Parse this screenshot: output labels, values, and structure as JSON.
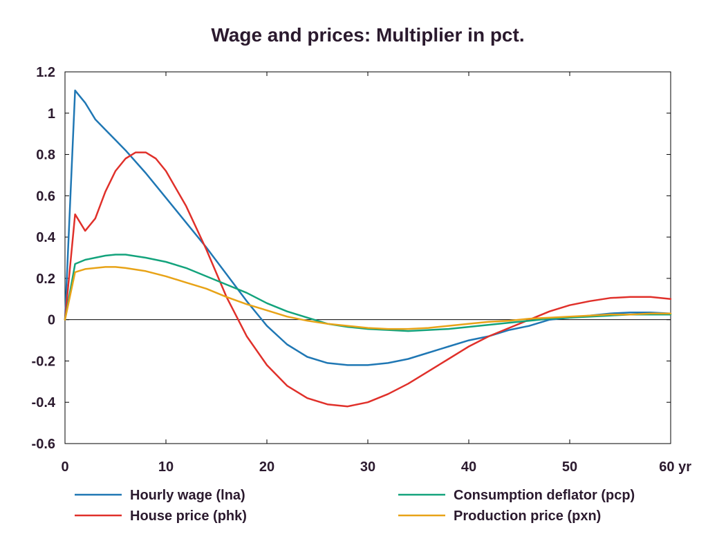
{
  "chart_data": {
    "type": "line",
    "title": "Wage and prices: Multiplier in pct.",
    "xlabel": "",
    "ylabel": "",
    "x_unit_label": "yr",
    "xlim": [
      0,
      60
    ],
    "ylim": [
      -0.6,
      1.2
    ],
    "x_ticks": [
      0,
      10,
      20,
      30,
      40,
      50,
      60
    ],
    "y_ticks": [
      -0.6,
      -0.4,
      -0.2,
      0,
      0.2,
      0.4,
      0.6,
      0.8,
      1,
      1.2
    ],
    "x_tick_labels": [
      "0",
      "10",
      "20",
      "30",
      "40",
      "50",
      "60 yr"
    ],
    "y_tick_labels": [
      "-0.6",
      "-0.4",
      "-0.2",
      "0",
      "0.2",
      "0.4",
      "0.6",
      "0.8",
      "1",
      "1.2"
    ],
    "grid": false,
    "zero_line": true,
    "legend_position": "bottom",
    "series": [
      {
        "name": "Hourly wage (lna)",
        "color": "#1f77b4",
        "x": [
          0,
          1,
          2,
          3,
          4,
          5,
          6,
          8,
          10,
          12,
          14,
          16,
          18,
          20,
          22,
          24,
          26,
          28,
          30,
          32,
          34,
          36,
          38,
          40,
          42,
          44,
          46,
          48,
          50,
          52,
          54,
          56,
          58,
          60
        ],
        "y": [
          0,
          1.11,
          1.05,
          0.97,
          0.92,
          0.87,
          0.82,
          0.71,
          0.59,
          0.47,
          0.35,
          0.22,
          0.09,
          -0.03,
          -0.12,
          -0.18,
          -0.21,
          -0.22,
          -0.22,
          -0.21,
          -0.19,
          -0.16,
          -0.13,
          -0.1,
          -0.08,
          -0.05,
          -0.03,
          0,
          0.01,
          0.02,
          0.03,
          0.035,
          0.035,
          0.03
        ]
      },
      {
        "name": "House price (phk)",
        "color": "#e0302a",
        "x": [
          0,
          1,
          2,
          3,
          4,
          5,
          6,
          7,
          8,
          9,
          10,
          12,
          14,
          16,
          18,
          20,
          22,
          24,
          26,
          28,
          30,
          32,
          34,
          36,
          38,
          40,
          42,
          44,
          46,
          48,
          50,
          52,
          54,
          56,
          58,
          60
        ],
        "y": [
          0,
          0.51,
          0.43,
          0.49,
          0.62,
          0.72,
          0.78,
          0.81,
          0.81,
          0.78,
          0.72,
          0.55,
          0.34,
          0.11,
          -0.08,
          -0.22,
          -0.32,
          -0.38,
          -0.41,
          -0.42,
          -0.4,
          -0.36,
          -0.31,
          -0.25,
          -0.19,
          -0.13,
          -0.08,
          -0.04,
          0,
          0.04,
          0.07,
          0.09,
          0.105,
          0.11,
          0.11,
          0.1
        ]
      },
      {
        "name": "Consumption deflator (pcp)",
        "color": "#13a37c",
        "x": [
          0,
          1,
          2,
          3,
          4,
          5,
          6,
          8,
          10,
          12,
          14,
          16,
          18,
          20,
          22,
          24,
          26,
          28,
          30,
          32,
          34,
          36,
          38,
          40,
          42,
          44,
          46,
          48,
          50,
          52,
          54,
          56,
          58,
          60
        ],
        "y": [
          0,
          0.27,
          0.29,
          0.3,
          0.31,
          0.315,
          0.315,
          0.3,
          0.28,
          0.25,
          0.21,
          0.17,
          0.13,
          0.08,
          0.04,
          0.01,
          -0.02,
          -0.035,
          -0.045,
          -0.05,
          -0.055,
          -0.05,
          -0.045,
          -0.035,
          -0.025,
          -0.015,
          -0.005,
          0.005,
          0.01,
          0.015,
          0.02,
          0.025,
          0.025,
          0.025
        ]
      },
      {
        "name": "Production price (pxn)",
        "color": "#e8a317",
        "x": [
          0,
          1,
          2,
          3,
          4,
          5,
          6,
          8,
          10,
          12,
          14,
          16,
          18,
          20,
          22,
          24,
          26,
          28,
          30,
          32,
          34,
          36,
          38,
          40,
          42,
          44,
          46,
          48,
          50,
          52,
          54,
          56,
          58,
          60
        ],
        "y": [
          0,
          0.23,
          0.245,
          0.25,
          0.255,
          0.255,
          0.25,
          0.235,
          0.21,
          0.18,
          0.15,
          0.11,
          0.075,
          0.045,
          0.015,
          -0.005,
          -0.02,
          -0.03,
          -0.04,
          -0.045,
          -0.045,
          -0.04,
          -0.03,
          -0.02,
          -0.01,
          -0.005,
          0.005,
          0.01,
          0.015,
          0.02,
          0.025,
          0.025,
          0.03,
          0.03
        ]
      }
    ]
  }
}
